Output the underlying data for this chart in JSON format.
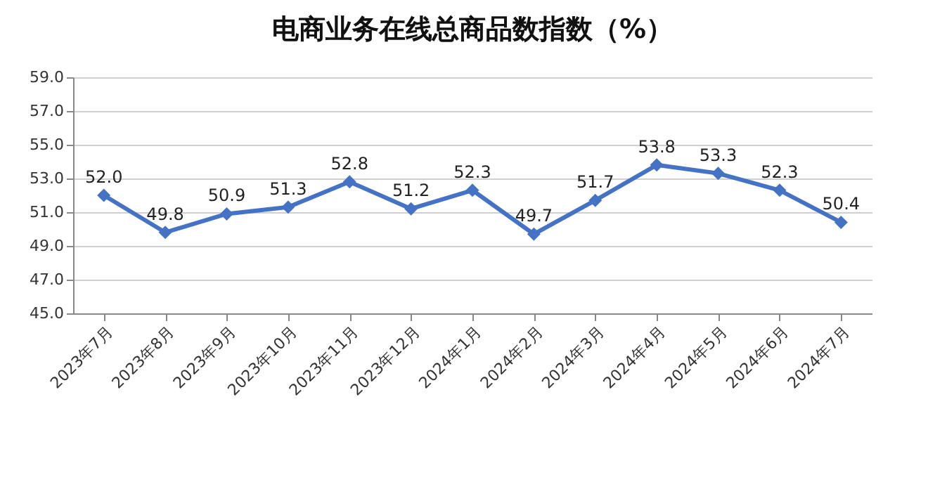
{
  "chart_data": {
    "type": "line",
    "title": "电商业务在线总商品数指数（%）",
    "categories": [
      "2023年7月",
      "2023年8月",
      "2023年9月",
      "2023年10月",
      "2023年11月",
      "2023年12月",
      "2024年1月",
      "2024年2月",
      "2024年3月",
      "2024年4月",
      "2024年5月",
      "2024年6月",
      "2024年7月"
    ],
    "series": [
      {
        "color": "#4472c4",
        "values": [
          52.0,
          49.8,
          50.9,
          51.3,
          52.8,
          51.2,
          52.3,
          49.7,
          51.7,
          53.8,
          53.3,
          52.3,
          50.4
        ],
        "value_labels": [
          "52.0",
          "49.8",
          "50.9",
          "51.3",
          "52.8",
          "51.2",
          "52.3",
          "49.7",
          "51.7",
          "53.8",
          "53.3",
          "52.3",
          "50.4"
        ]
      }
    ],
    "ylim": [
      45,
      59
    ],
    "yticks": [
      {
        "value": 45,
        "label": "45.0"
      },
      {
        "value": 47,
        "label": "47.0"
      },
      {
        "value": 49,
        "label": "49.0"
      },
      {
        "value": 51,
        "label": "51.0"
      },
      {
        "value": 53,
        "label": "53.0"
      },
      {
        "value": 55,
        "label": "55.0"
      },
      {
        "value": 57,
        "label": "57.0"
      },
      {
        "value": 59,
        "label": "59.0"
      }
    ],
    "grid": "y",
    "marker": "diamond",
    "line_style": "solid"
  }
}
